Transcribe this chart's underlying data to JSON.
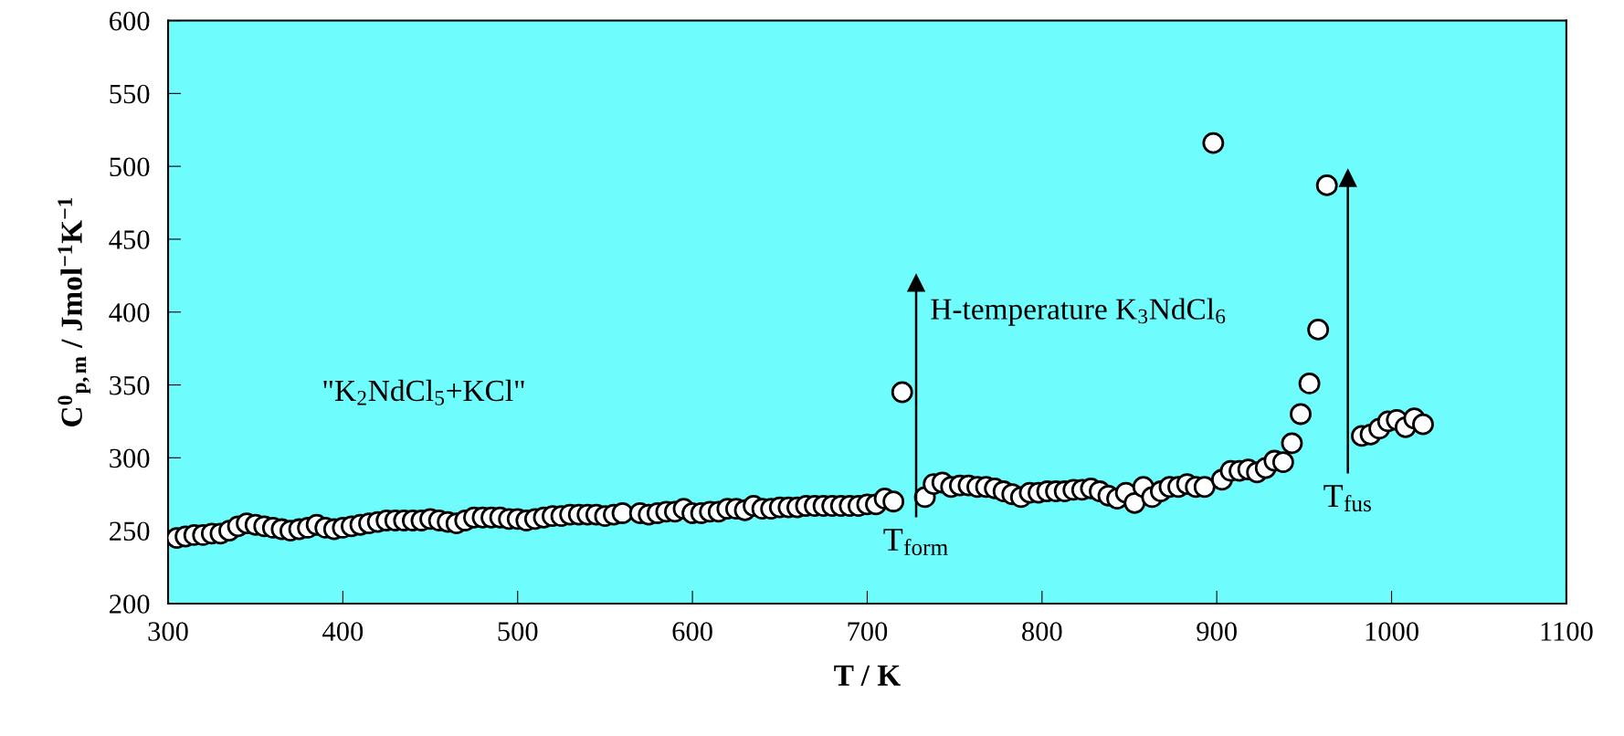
{
  "chart_data": {
    "type": "scatter",
    "xlabel": "T / K",
    "ylabel": "C$^{0}$$_{p,m}$ / Jmol$^{−1}$K$^{−1}$",
    "x": [
      305,
      310,
      315,
      320,
      325,
      330,
      335,
      340,
      345,
      350,
      355,
      360,
      365,
      370,
      375,
      380,
      385,
      390,
      395,
      400,
      405,
      410,
      415,
      420,
      425,
      430,
      435,
      440,
      445,
      450,
      455,
      460,
      465,
      470,
      475,
      480,
      485,
      490,
      495,
      500,
      505,
      510,
      515,
      520,
      525,
      530,
      535,
      540,
      545,
      550,
      555,
      560,
      570,
      575,
      580,
      585,
      590,
      595,
      600,
      605,
      610,
      615,
      620,
      625,
      630,
      635,
      640,
      645,
      650,
      655,
      660,
      665,
      670,
      675,
      680,
      685,
      690,
      695,
      700,
      705,
      710,
      715,
      720,
      733,
      738,
      743,
      748,
      753,
      758,
      763,
      768,
      773,
      778,
      783,
      788,
      793,
      798,
      803,
      808,
      813,
      818,
      823,
      828,
      833,
      838,
      843,
      848,
      853,
      858,
      863,
      868,
      873,
      878,
      883,
      888,
      893,
      898,
      903,
      908,
      913,
      918,
      923,
      928,
      933,
      938,
      943,
      948,
      953,
      958,
      963,
      983,
      988,
      993,
      998,
      1003,
      1008,
      1013,
      1018
    ],
    "series": [
      {
        "color": "#ffffff",
        "values": [
          245,
          246,
          247,
          247,
          248,
          248,
          250,
          253,
          255,
          254,
          253,
          252,
          251,
          250,
          251,
          252,
          254,
          252,
          251,
          252,
          253,
          254,
          255,
          256,
          257,
          257,
          257,
          257,
          257,
          258,
          257,
          256,
          255,
          257,
          259,
          259,
          259,
          259,
          258,
          258,
          257,
          258,
          259,
          260,
          260,
          261,
          261,
          261,
          261,
          260,
          261,
          262,
          262,
          261,
          262,
          263,
          263,
          265,
          262,
          262,
          263,
          263,
          265,
          265,
          264,
          267,
          265,
          265,
          266,
          266,
          266,
          267,
          267,
          267,
          267,
          267,
          267,
          267,
          268,
          268,
          272,
          270,
          345,
          273,
          282,
          283,
          280,
          281,
          281,
          280,
          280,
          279,
          277,
          275,
          273,
          276,
          276,
          277,
          277,
          277,
          278,
          278,
          279,
          277,
          274,
          272,
          276,
          269,
          280,
          273,
          277,
          280,
          280,
          282,
          280,
          280,
          516,
          285,
          291,
          291,
          292,
          290,
          293,
          298,
          297,
          310,
          330,
          351,
          388,
          487,
          315,
          316,
          320,
          325,
          326,
          321,
          327,
          323
        ]
      }
    ],
    "marker": "circle",
    "grid": false,
    "ref_lines": [
      {
        "axis": "x",
        "value": 728,
        "label": "T$_{ form}$"
      },
      {
        "axis": "x",
        "value": 975,
        "label": "T$_{ fus}$"
      }
    ],
    "xlim": [
      300,
      1100
    ],
    "xticks": [
      300,
      400,
      500,
      600,
      700,
      800,
      900,
      1000,
      1100
    ],
    "ylim": [
      200,
      600
    ],
    "yticks": [
      200,
      250,
      300,
      350,
      400,
      450,
      500,
      550,
      600
    ],
    "annotations": [
      "\"K$_{2}$NdCl$_{5}$+KCl\"",
      "H-temperature K$_{3}$NdCl$_{6}$"
    ]
  }
}
